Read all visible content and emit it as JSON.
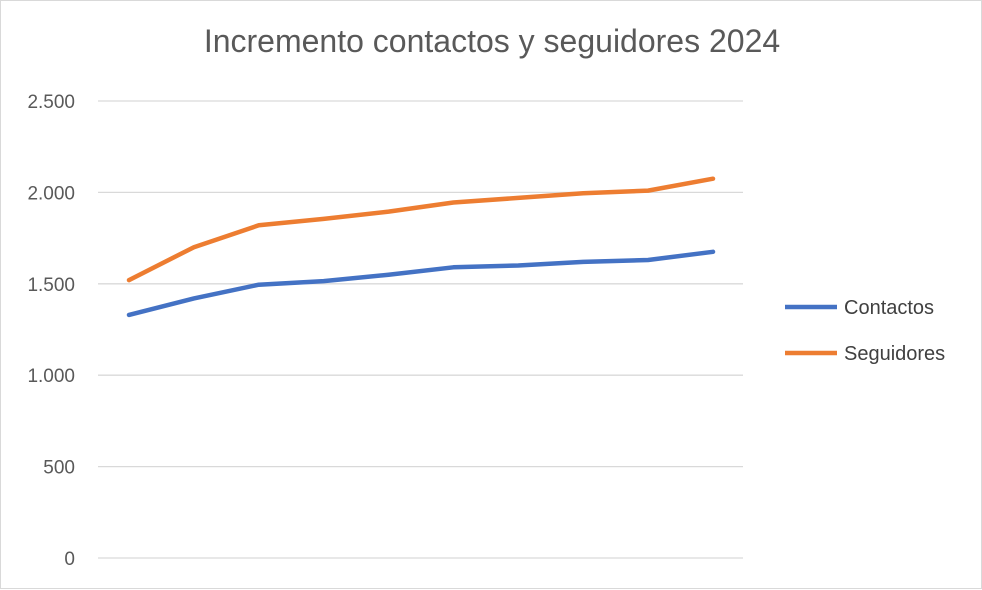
{
  "chart_data": {
    "type": "line",
    "title": "Incremento contactos y seguidores 2024",
    "xlabel": "",
    "ylabel": "",
    "ylim": [
      0,
      2500
    ],
    "y_ticks": [
      0,
      500,
      1000,
      1500,
      2000,
      2500
    ],
    "y_tick_labels": [
      "0",
      "500",
      "1.000",
      "1.500",
      "2.000",
      "2.500"
    ],
    "grid": true,
    "legend_position": "right",
    "series": [
      {
        "name": "Contactos",
        "color": "#4472c4",
        "values": [
          1330,
          1420,
          1495,
          1515,
          1550,
          1590,
          1600,
          1620,
          1630,
          1675
        ]
      },
      {
        "name": "Seguidores",
        "color": "#ed7d31",
        "values": [
          1520,
          1700,
          1820,
          1855,
          1895,
          1945,
          1970,
          1995,
          2010,
          2075
        ]
      }
    ]
  }
}
